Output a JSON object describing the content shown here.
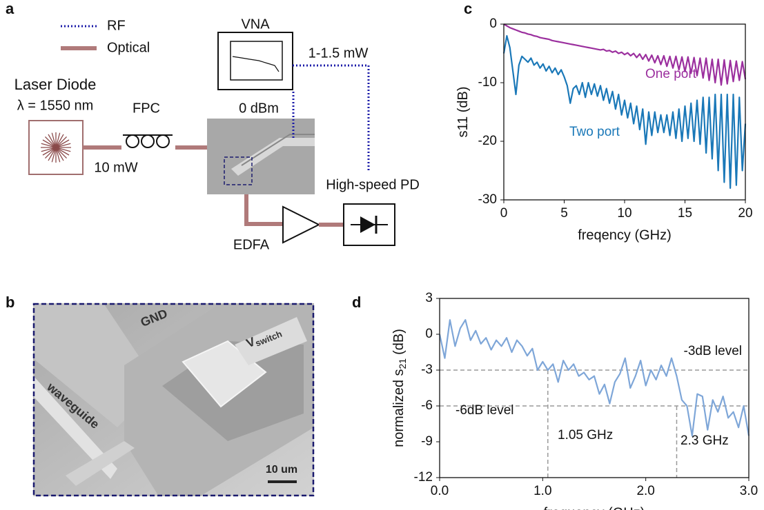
{
  "panel_labels": [
    "a",
    "b",
    "c",
    "d"
  ],
  "setup": {
    "legend": [
      "RF",
      "Optical"
    ],
    "laser": "Laser Diode",
    "wavelength": "λ = 1550 nm",
    "fpc": "FPC",
    "laser_power": "10 mW",
    "vna": "VNA",
    "vna_power": "0 dBm",
    "rf_power": "1-1.5 mW",
    "pd": "High-speed PD",
    "edfa": "EDFA"
  },
  "sem": {
    "gnd": "GND",
    "vswitch": "V",
    "vswitch_sub": "switch",
    "waveguide": "waveguide",
    "scale": "10 um"
  },
  "chart_data": [
    {
      "type": "line",
      "xlabel": "freqency (GHz)",
      "ylabel": {
        "main": "s11 (dB)"
      },
      "xlim": [
        0,
        20
      ],
      "ylim": [
        -30,
        0
      ],
      "xticks": [
        0,
        5,
        10,
        15,
        20
      ],
      "yticks": [
        0,
        -10,
        -20,
        -30
      ],
      "grid": false,
      "x": [
        0,
        0.25,
        0.5,
        0.75,
        1,
        1.25,
        1.5,
        1.75,
        2,
        2.25,
        2.5,
        2.75,
        3,
        3.25,
        3.5,
        3.75,
        4,
        4.25,
        4.5,
        4.75,
        5,
        5.25,
        5.5,
        5.75,
        6,
        6.25,
        6.5,
        6.75,
        7,
        7.25,
        7.5,
        7.75,
        8,
        8.25,
        8.5,
        8.75,
        9,
        9.25,
        9.5,
        9.75,
        10,
        10.25,
        10.5,
        10.75,
        11,
        11.25,
        11.5,
        11.75,
        12,
        12.25,
        12.5,
        12.75,
        13,
        13.25,
        13.5,
        13.75,
        14,
        14.25,
        14.5,
        14.75,
        15,
        15.25,
        15.5,
        15.75,
        16,
        16.25,
        16.5,
        16.75,
        17,
        17.25,
        17.5,
        17.75,
        18,
        18.25,
        18.5,
        18.75,
        19,
        19.25,
        19.5,
        19.75,
        20
      ],
      "series": [
        {
          "name": "One port",
          "color": "#9b2f9e",
          "values": [
            0,
            -0.3,
            -0.6,
            -0.8,
            -1.0,
            -1.2,
            -1.4,
            -1.5,
            -1.7,
            -1.8,
            -2.0,
            -2.1,
            -2.3,
            -2.4,
            -2.5,
            -2.6,
            -2.8,
            -2.9,
            -3.0,
            -3.1,
            -3.2,
            -3.3,
            -3.4,
            -3.5,
            -3.6,
            -3.7,
            -3.8,
            -3.9,
            -4.0,
            -4.1,
            -4.2,
            -4.3,
            -4.4,
            -4.3,
            -4.6,
            -4.5,
            -4.8,
            -4.6,
            -5.0,
            -4.8,
            -5.2,
            -4.9,
            -5.4,
            -5.0,
            -5.7,
            -5.1,
            -6.0,
            -5.2,
            -6.3,
            -5.3,
            -6.6,
            -5.4,
            -6.9,
            -5.4,
            -7.2,
            -5.5,
            -7.5,
            -5.5,
            -7.8,
            -5.6,
            -8.1,
            -5.6,
            -8.4,
            -5.7,
            -8.8,
            -5.8,
            -9.2,
            -5.8,
            -9.6,
            -6.0,
            -10.0,
            -6.0,
            -10.4,
            -6.1,
            -10.2,
            -6.2,
            -9.8,
            -6.3,
            -9.6,
            -6.4,
            -9.4
          ]
        },
        {
          "name": "Two port",
          "color": "#1a78b8",
          "values": [
            -5.0,
            -2.0,
            -4.0,
            -8.0,
            -12.0,
            -7.0,
            -5.5,
            -6.0,
            -6.5,
            -5.8,
            -7.0,
            -6.5,
            -7.5,
            -6.8,
            -8.0,
            -7.2,
            -8.3,
            -7.5,
            -8.6,
            -7.8,
            -9.0,
            -10.5,
            -13.5,
            -11.0,
            -10.5,
            -12.0,
            -10.0,
            -12.5,
            -10.0,
            -12.0,
            -10.2,
            -12.3,
            -10.5,
            -13.0,
            -11.0,
            -13.5,
            -11.5,
            -14.5,
            -12.0,
            -15.5,
            -13.0,
            -16.0,
            -13.5,
            -17.0,
            -14.0,
            -18.0,
            -14.5,
            -20.5,
            -15.0,
            -19.0,
            -15.0,
            -18.5,
            -15.5,
            -18.5,
            -15.5,
            -19.0,
            -15.0,
            -19.5,
            -14.5,
            -20.0,
            -14.0,
            -19.5,
            -13.5,
            -20.0,
            -13.0,
            -20.5,
            -12.5,
            -22.0,
            -12.5,
            -23.0,
            -12.0,
            -25.0,
            -12.0,
            -27.0,
            -12.0,
            -28.0,
            -12.0,
            -27.5,
            -12.5,
            -25.0,
            -17.0
          ]
        }
      ]
    },
    {
      "type": "line",
      "xlabel": "frequency (GHz)",
      "ylabel": {
        "main": "normalized s",
        "sub": "21",
        "unit": "(dB)"
      },
      "xlim": [
        0,
        3
      ],
      "ylim": [
        -12,
        3
      ],
      "xticks": [
        {
          "value": 0,
          "label": "0.0"
        },
        {
          "value": 1,
          "label": "1.0"
        },
        {
          "value": 2,
          "label": "2.0"
        },
        {
          "value": 3,
          "label": "3.0"
        }
      ],
      "yticks": [
        3,
        0,
        -3,
        -6,
        -9,
        -12
      ],
      "grid": false,
      "hlines": [
        -3,
        -6
      ],
      "vlines": [
        1.05,
        2.3
      ],
      "annotations": [
        "-3dB level",
        "-6dB level",
        "1.05 GHz",
        "2.3 GHz"
      ],
      "x": [
        0,
        0.05,
        0.1,
        0.15,
        0.2,
        0.25,
        0.3,
        0.35,
        0.4,
        0.45,
        0.5,
        0.55,
        0.6,
        0.65,
        0.7,
        0.75,
        0.8,
        0.85,
        0.9,
        0.95,
        1.0,
        1.05,
        1.1,
        1.15,
        1.2,
        1.25,
        1.3,
        1.35,
        1.4,
        1.45,
        1.5,
        1.55,
        1.6,
        1.65,
        1.7,
        1.75,
        1.8,
        1.85,
        1.9,
        1.95,
        2.0,
        2.05,
        2.1,
        2.15,
        2.2,
        2.25,
        2.3,
        2.35,
        2.4,
        2.45,
        2.5,
        2.55,
        2.6,
        2.65,
        2.7,
        2.75,
        2.8,
        2.85,
        2.9,
        2.95,
        3.0
      ],
      "series": [
        {
          "color": "#7ea6d8",
          "values": [
            0.0,
            -2.0,
            1.2,
            -1.0,
            0.5,
            1.2,
            -0.5,
            0.3,
            -0.8,
            -0.3,
            -1.3,
            -0.5,
            -1.0,
            -0.3,
            -1.5,
            -0.5,
            -1.0,
            -1.8,
            -1.2,
            -3.0,
            -2.3,
            -3.0,
            -2.5,
            -4.0,
            -2.2,
            -3.0,
            -2.5,
            -3.5,
            -3.2,
            -3.8,
            -3.5,
            -5.0,
            -4.2,
            -5.8,
            -4.0,
            -3.3,
            -2.0,
            -4.5,
            -3.5,
            -2.2,
            -4.3,
            -3.0,
            -3.8,
            -2.6,
            -3.5,
            -2.0,
            -3.5,
            -5.5,
            -6.0,
            -8.5,
            -5.0,
            -5.2,
            -8.0,
            -5.5,
            -6.5,
            -5.2,
            -7.0,
            -6.5,
            -7.8,
            -6.0,
            -8.5
          ]
        }
      ]
    }
  ]
}
